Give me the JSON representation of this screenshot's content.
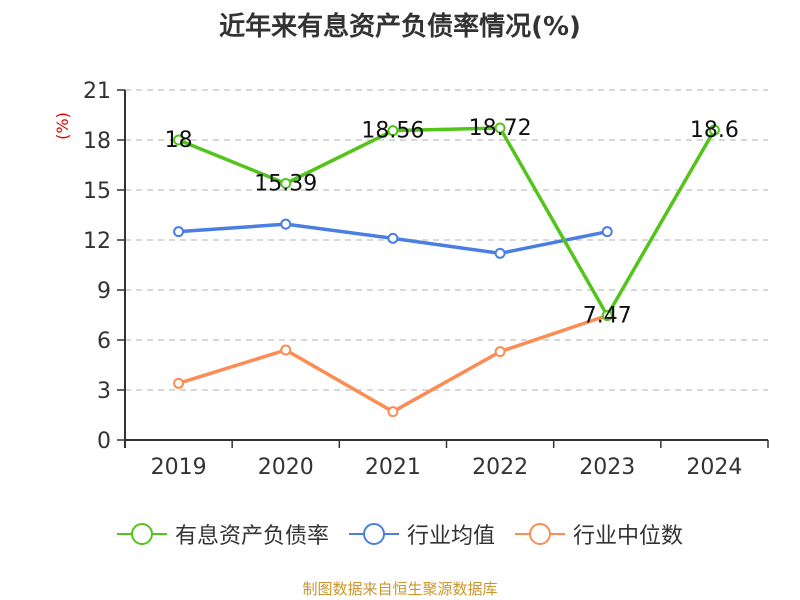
{
  "title": "近年来有息资产负债率情况(%)",
  "source_note": "制图数据来自恒生聚源数据库",
  "y_unit_label": "(%)",
  "colors": {
    "series_company": "#52c41a",
    "series_industry_avg": "#4a7ee0",
    "series_industry_median": "#fa8c54",
    "grid": "#cccccc",
    "axis": "#333333",
    "unit_label": "#e00000",
    "source": "#c8962e"
  },
  "legend": [
    {
      "label": "有息资产负债率",
      "color": "#52c41a"
    },
    {
      "label": "行业均值",
      "color": "#4a7ee0"
    },
    {
      "label": "行业中位数",
      "color": "#fa8c54"
    }
  ],
  "chart_data": {
    "type": "line",
    "title": "近年来有息资产负债率情况(%)",
    "xlabel": "",
    "ylabel": "(%)",
    "categories": [
      "2019",
      "2020",
      "2021",
      "2022",
      "2023",
      "2024"
    ],
    "ylim": [
      0,
      21
    ],
    "yticks": [
      0,
      3,
      6,
      9,
      12,
      15,
      18,
      21
    ],
    "grid": true,
    "legend_position": "bottom",
    "series": [
      {
        "name": "有息资产负债率",
        "values": [
          18,
          15.39,
          18.56,
          18.72,
          7.47,
          18.6
        ],
        "labels_shown": true
      },
      {
        "name": "行业均值",
        "values": [
          12.5,
          12.95,
          12.1,
          11.2,
          12.5,
          null
        ],
        "labels_shown": false
      },
      {
        "name": "行业中位数",
        "values": [
          3.4,
          5.4,
          1.7,
          5.3,
          7.47,
          null
        ],
        "labels_shown": false
      }
    ]
  }
}
